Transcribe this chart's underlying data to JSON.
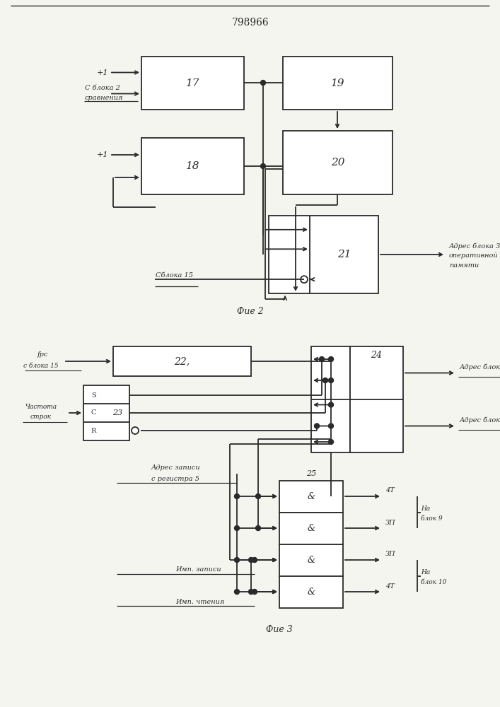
{
  "title": "798966",
  "fig2_label": "Фие 2",
  "fig3_label": "Фие 3",
  "bg_color": "#f5f5f0",
  "line_color": "#2a2a2a",
  "lw": 1.3
}
